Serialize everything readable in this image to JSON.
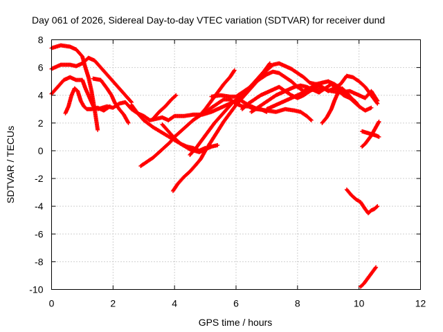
{
  "chart_data": {
    "type": "scatter",
    "title": "Day 061 of 2026, Sidereal Day-to-day VTEC variation (SDTVAR) for receiver dund",
    "xlabel": "GPS time / hours",
    "ylabel": "SDTVAR / TECUs",
    "xlim": [
      0,
      12
    ],
    "ylim": [
      -10,
      8
    ],
    "xticks": [
      0,
      2,
      4,
      6,
      8,
      10,
      12
    ],
    "yticks": [
      -10,
      -8,
      -6,
      -4,
      -2,
      0,
      2,
      4,
      6,
      8
    ],
    "grid": true,
    "marker": "+",
    "color": "#ff0000",
    "series": [
      {
        "name": "s1",
        "points": [
          [
            0.0,
            7.4
          ],
          [
            0.3,
            7.6
          ],
          [
            0.6,
            7.5
          ],
          [
            0.8,
            7.3
          ],
          [
            1.0,
            6.8
          ],
          [
            1.1,
            6.0
          ],
          [
            1.2,
            5.3
          ],
          [
            1.3,
            4.3
          ],
          [
            1.4,
            3.0
          ],
          [
            1.5,
            1.5
          ]
        ]
      },
      {
        "name": "s2",
        "points": [
          [
            0.0,
            5.9
          ],
          [
            0.3,
            6.2
          ],
          [
            0.6,
            6.2
          ],
          [
            0.8,
            6.1
          ],
          [
            1.0,
            6.3
          ],
          [
            1.2,
            6.7
          ],
          [
            1.4,
            6.5
          ],
          [
            1.6,
            6.0
          ],
          [
            1.8,
            5.5
          ],
          [
            2.0,
            5.0
          ],
          [
            2.2,
            4.5
          ],
          [
            2.4,
            4.0
          ],
          [
            2.6,
            3.5
          ]
        ]
      },
      {
        "name": "s3",
        "points": [
          [
            0.0,
            4.1
          ],
          [
            0.2,
            4.6
          ],
          [
            0.4,
            5.1
          ],
          [
            0.6,
            5.3
          ],
          [
            0.8,
            5.1
          ],
          [
            1.0,
            5.1
          ],
          [
            1.1,
            4.5
          ],
          [
            1.2,
            4.0
          ],
          [
            1.3,
            3.5
          ],
          [
            1.4,
            3.0
          ]
        ]
      },
      {
        "name": "s4",
        "points": [
          [
            0.45,
            2.7
          ],
          [
            0.55,
            3.2
          ],
          [
            0.65,
            4.0
          ],
          [
            0.75,
            4.5
          ],
          [
            0.85,
            4.3
          ],
          [
            0.95,
            3.6
          ],
          [
            1.05,
            3.2
          ],
          [
            1.15,
            3.0
          ],
          [
            1.3,
            3.0
          ],
          [
            1.5,
            3.1
          ],
          [
            1.7,
            2.9
          ],
          [
            1.9,
            3.2
          ]
        ]
      },
      {
        "name": "s5",
        "points": [
          [
            1.35,
            5.2
          ],
          [
            1.6,
            5.1
          ],
          [
            1.8,
            4.5
          ],
          [
            1.95,
            4.0
          ],
          [
            2.05,
            3.5
          ],
          [
            2.2,
            3.0
          ],
          [
            2.35,
            2.6
          ],
          [
            2.5,
            2.0
          ]
        ]
      },
      {
        "name": "s6",
        "points": [
          [
            1.5,
            3.0
          ],
          [
            1.8,
            3.2
          ],
          [
            2.0,
            3.1
          ],
          [
            2.2,
            3.4
          ],
          [
            2.4,
            3.5
          ],
          [
            2.6,
            3.0
          ],
          [
            2.8,
            2.7
          ],
          [
            3.0,
            2.5
          ],
          [
            3.2,
            2.2
          ],
          [
            3.4,
            2.3
          ],
          [
            3.6,
            2.4
          ],
          [
            3.8,
            2.2
          ],
          [
            4.0,
            2.5
          ],
          [
            4.3,
            2.5
          ],
          [
            4.6,
            2.6
          ],
          [
            4.9,
            2.6
          ],
          [
            5.2,
            2.8
          ],
          [
            5.5,
            3.1
          ],
          [
            5.8,
            3.4
          ],
          [
            6.1,
            3.7
          ],
          [
            6.4,
            3.3
          ],
          [
            6.7,
            3.0
          ],
          [
            7.0,
            2.9
          ],
          [
            7.3,
            2.8
          ],
          [
            7.6,
            3.0
          ],
          [
            7.9,
            2.9
          ],
          [
            8.1,
            2.8
          ],
          [
            8.3,
            2.5
          ],
          [
            8.45,
            2.2
          ]
        ]
      },
      {
        "name": "s7",
        "points": [
          [
            2.9,
            -1.1
          ],
          [
            3.1,
            -0.8
          ],
          [
            3.3,
            -0.5
          ],
          [
            3.5,
            -0.1
          ],
          [
            3.7,
            0.3
          ],
          [
            3.85,
            0.6
          ],
          [
            4.0,
            1.0
          ],
          [
            4.2,
            1.4
          ],
          [
            4.4,
            1.8
          ],
          [
            4.6,
            2.2
          ],
          [
            4.8,
            2.5
          ],
          [
            5.0,
            2.8
          ],
          [
            5.2,
            3.1
          ],
          [
            5.4,
            3.4
          ],
          [
            5.6,
            3.7
          ],
          [
            5.8,
            3.7
          ],
          [
            6.0,
            3.4
          ],
          [
            6.2,
            3.2
          ],
          [
            6.4,
            3.2
          ],
          [
            6.6,
            3.0
          ],
          [
            6.8,
            3.0
          ],
          [
            7.0,
            2.8
          ]
        ]
      },
      {
        "name": "s8",
        "points": [
          [
            3.3,
            2.3
          ],
          [
            3.5,
            2.8
          ],
          [
            3.7,
            3.2
          ],
          [
            3.9,
            3.7
          ],
          [
            4.05,
            4.0
          ]
        ]
      },
      {
        "name": "s9",
        "points": [
          [
            2.6,
            3.3
          ],
          [
            2.8,
            2.7
          ],
          [
            3.0,
            2.2
          ],
          [
            3.3,
            1.7
          ],
          [
            3.6,
            1.3
          ],
          [
            3.9,
            0.9
          ],
          [
            4.2,
            0.5
          ],
          [
            4.5,
            0.1
          ],
          [
            4.8,
            -0.1
          ],
          [
            5.0,
            0.1
          ],
          [
            5.2,
            0.3
          ],
          [
            5.4,
            0.4
          ]
        ]
      },
      {
        "name": "s10",
        "points": [
          [
            3.6,
            1.9
          ],
          [
            3.8,
            1.4
          ],
          [
            4.0,
            0.9
          ],
          [
            4.2,
            0.5
          ],
          [
            4.4,
            0.3
          ],
          [
            4.6,
            0.2
          ],
          [
            4.8,
            0.0
          ],
          [
            5.0,
            0.2
          ]
        ]
      },
      {
        "name": "s11",
        "points": [
          [
            3.95,
            -2.9
          ],
          [
            4.1,
            -2.4
          ],
          [
            4.3,
            -1.9
          ],
          [
            4.5,
            -1.5
          ],
          [
            4.7,
            -1.0
          ],
          [
            4.85,
            -0.6
          ],
          [
            5.0,
            0.0
          ],
          [
            5.2,
            0.7
          ],
          [
            5.4,
            1.4
          ],
          [
            5.6,
            2.1
          ],
          [
            5.8,
            2.7
          ],
          [
            6.0,
            3.3
          ],
          [
            6.2,
            3.8
          ],
          [
            6.4,
            4.3
          ],
          [
            6.6,
            4.8
          ],
          [
            6.8,
            5.3
          ],
          [
            7.0,
            5.8
          ],
          [
            7.2,
            6.2
          ],
          [
            7.4,
            6.3
          ],
          [
            7.6,
            6.1
          ],
          [
            7.8,
            5.9
          ],
          [
            8.0,
            5.6
          ],
          [
            8.2,
            5.3
          ],
          [
            8.4,
            4.9
          ],
          [
            8.6,
            4.8
          ],
          [
            8.8,
            4.9
          ],
          [
            9.0,
            5.0
          ],
          [
            9.2,
            4.8
          ],
          [
            9.4,
            4.5
          ],
          [
            9.6,
            4.0
          ],
          [
            9.8,
            3.6
          ],
          [
            10.0,
            3.2
          ],
          [
            10.2,
            2.9
          ],
          [
            10.4,
            3.1
          ]
        ]
      },
      {
        "name": "s12",
        "points": [
          [
            4.5,
            -0.3
          ],
          [
            4.7,
            0.2
          ],
          [
            4.9,
            0.8
          ],
          [
            5.1,
            1.4
          ],
          [
            5.3,
            2.0
          ],
          [
            5.5,
            2.5
          ],
          [
            5.7,
            3.0
          ],
          [
            5.9,
            3.5
          ],
          [
            6.1,
            3.8
          ],
          [
            6.3,
            4.2
          ],
          [
            6.5,
            4.7
          ],
          [
            6.7,
            5.2
          ],
          [
            6.9,
            5.7
          ],
          [
            7.0,
            6.0
          ],
          [
            7.1,
            6.3
          ]
        ]
      },
      {
        "name": "s13",
        "points": [
          [
            4.8,
            2.5
          ],
          [
            5.0,
            3.0
          ],
          [
            5.2,
            3.6
          ],
          [
            5.4,
            4.2
          ],
          [
            5.6,
            4.8
          ],
          [
            5.8,
            5.3
          ],
          [
            5.95,
            5.8
          ]
        ]
      },
      {
        "name": "s14",
        "points": [
          [
            5.2,
            3.9
          ],
          [
            5.5,
            4.0
          ],
          [
            5.8,
            3.9
          ],
          [
            6.0,
            3.9
          ],
          [
            6.2,
            4.2
          ],
          [
            6.4,
            4.5
          ],
          [
            6.6,
            4.9
          ],
          [
            6.8,
            5.2
          ],
          [
            7.0,
            5.5
          ],
          [
            7.2,
            5.7
          ],
          [
            7.4,
            5.6
          ],
          [
            7.6,
            5.3
          ],
          [
            7.8,
            5.0
          ],
          [
            8.0,
            4.6
          ],
          [
            8.2,
            4.3
          ],
          [
            8.4,
            4.5
          ],
          [
            8.6,
            4.8
          ],
          [
            8.8,
            4.6
          ],
          [
            9.0,
            4.3
          ],
          [
            9.2,
            4.5
          ],
          [
            9.4,
            4.8
          ],
          [
            9.6,
            5.4
          ],
          [
            9.8,
            5.3
          ],
          [
            10.0,
            5.0
          ],
          [
            10.2,
            4.6
          ],
          [
            10.4,
            4.0
          ],
          [
            10.6,
            3.4
          ]
        ]
      },
      {
        "name": "s15",
        "points": [
          [
            6.2,
            3.0
          ],
          [
            6.4,
            3.4
          ],
          [
            6.6,
            3.7
          ],
          [
            6.8,
            4.0
          ],
          [
            7.0,
            4.2
          ],
          [
            7.2,
            4.4
          ],
          [
            7.4,
            4.6
          ],
          [
            7.6,
            4.3
          ],
          [
            7.8,
            4.0
          ],
          [
            8.0,
            3.8
          ],
          [
            8.2,
            4.0
          ],
          [
            8.4,
            4.3
          ],
          [
            8.6,
            4.6
          ],
          [
            8.8,
            4.9
          ],
          [
            9.0,
            5.0
          ],
          [
            9.2,
            4.7
          ],
          [
            9.4,
            4.4
          ]
        ]
      },
      {
        "name": "s16",
        "points": [
          [
            6.5,
            2.8
          ],
          [
            6.7,
            3.1
          ],
          [
            6.9,
            3.4
          ],
          [
            7.1,
            3.7
          ],
          [
            7.3,
            4.0
          ],
          [
            7.5,
            4.2
          ],
          [
            7.7,
            4.4
          ],
          [
            7.9,
            4.6
          ],
          [
            8.1,
            4.7
          ],
          [
            8.3,
            4.6
          ],
          [
            8.5,
            4.4
          ],
          [
            8.7,
            4.2
          ],
          [
            8.9,
            4.5
          ],
          [
            9.1,
            4.8
          ],
          [
            9.3,
            4.4
          ],
          [
            9.5,
            4.0
          ],
          [
            9.7,
            3.8
          ],
          [
            9.9,
            3.5
          ],
          [
            10.0,
            3.2
          ]
        ]
      },
      {
        "name": "s17",
        "points": [
          [
            7.0,
            3.0
          ],
          [
            7.3,
            3.3
          ],
          [
            7.6,
            3.6
          ],
          [
            7.9,
            3.9
          ],
          [
            8.2,
            4.2
          ],
          [
            8.5,
            4.4
          ],
          [
            8.8,
            4.5
          ],
          [
            9.1,
            4.3
          ],
          [
            9.4,
            4.2
          ],
          [
            9.7,
            4.3
          ],
          [
            10.0,
            4.0
          ],
          [
            10.2,
            3.8
          ],
          [
            10.4,
            4.3
          ],
          [
            10.6,
            3.6
          ]
        ]
      },
      {
        "name": "s18",
        "points": [
          [
            8.8,
            2.0
          ],
          [
            8.95,
            2.4
          ],
          [
            9.1,
            3.0
          ],
          [
            9.2,
            3.6
          ],
          [
            9.3,
            4.1
          ],
          [
            9.45,
            4.5
          ],
          [
            9.6,
            4.2
          ],
          [
            9.75,
            3.8
          ],
          [
            9.9,
            3.5
          ]
        ]
      },
      {
        "name": "s19",
        "points": [
          [
            10.1,
            0.3
          ],
          [
            10.2,
            0.5
          ],
          [
            10.3,
            0.8
          ],
          [
            10.4,
            1.1
          ],
          [
            10.5,
            1.5
          ],
          [
            10.6,
            1.9
          ],
          [
            10.65,
            2.1
          ]
        ]
      },
      {
        "name": "s20",
        "points": [
          [
            10.1,
            1.4
          ],
          [
            10.25,
            1.3
          ],
          [
            10.4,
            1.2
          ],
          [
            10.55,
            1.1
          ],
          [
            10.65,
            1.0
          ]
        ]
      },
      {
        "name": "s21",
        "points": [
          [
            9.6,
            -2.8
          ],
          [
            9.75,
            -3.2
          ],
          [
            9.9,
            -3.5
          ],
          [
            10.05,
            -3.7
          ],
          [
            10.2,
            -4.2
          ],
          [
            10.3,
            -4.5
          ],
          [
            10.4,
            -4.3
          ],
          [
            10.5,
            -4.2
          ],
          [
            10.6,
            -4.0
          ]
        ]
      },
      {
        "name": "s22",
        "points": [
          [
            10.05,
            -9.8
          ],
          [
            10.15,
            -9.6
          ],
          [
            10.25,
            -9.3
          ],
          [
            10.35,
            -9.0
          ],
          [
            10.45,
            -8.7
          ],
          [
            10.55,
            -8.4
          ]
        ]
      }
    ]
  }
}
